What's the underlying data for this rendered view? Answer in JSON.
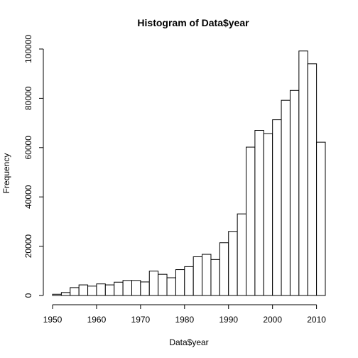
{
  "chart_data": {
    "type": "bar",
    "title": "Histogram of Data$year",
    "xlabel": "Data$year",
    "ylabel": "Frequency",
    "bin_width": 2,
    "x": [
      1950,
      1952,
      1954,
      1956,
      1958,
      1960,
      1962,
      1964,
      1966,
      1968,
      1970,
      1972,
      1974,
      1976,
      1978,
      1980,
      1982,
      1984,
      1986,
      1988,
      1990,
      1992,
      1994,
      1996,
      1998,
      2000,
      2002,
      2004,
      2006,
      2008,
      2010
    ],
    "values": [
      500,
      1200,
      3200,
      4300,
      3800,
      4700,
      4300,
      5400,
      6100,
      6100,
      5500,
      9900,
      8600,
      7200,
      10500,
      11700,
      15700,
      16700,
      14600,
      21400,
      26000,
      33100,
      60200,
      67000,
      65700,
      71300,
      79200,
      83200,
      99200,
      94000,
      62200
    ],
    "xlim": [
      1950,
      2012
    ],
    "ylim": [
      0,
      100000
    ],
    "xticks": [
      1950,
      1960,
      1970,
      1980,
      1990,
      2000,
      2010
    ],
    "yticks": [
      0,
      20000,
      40000,
      60000,
      80000,
      100000
    ],
    "grid": false
  }
}
